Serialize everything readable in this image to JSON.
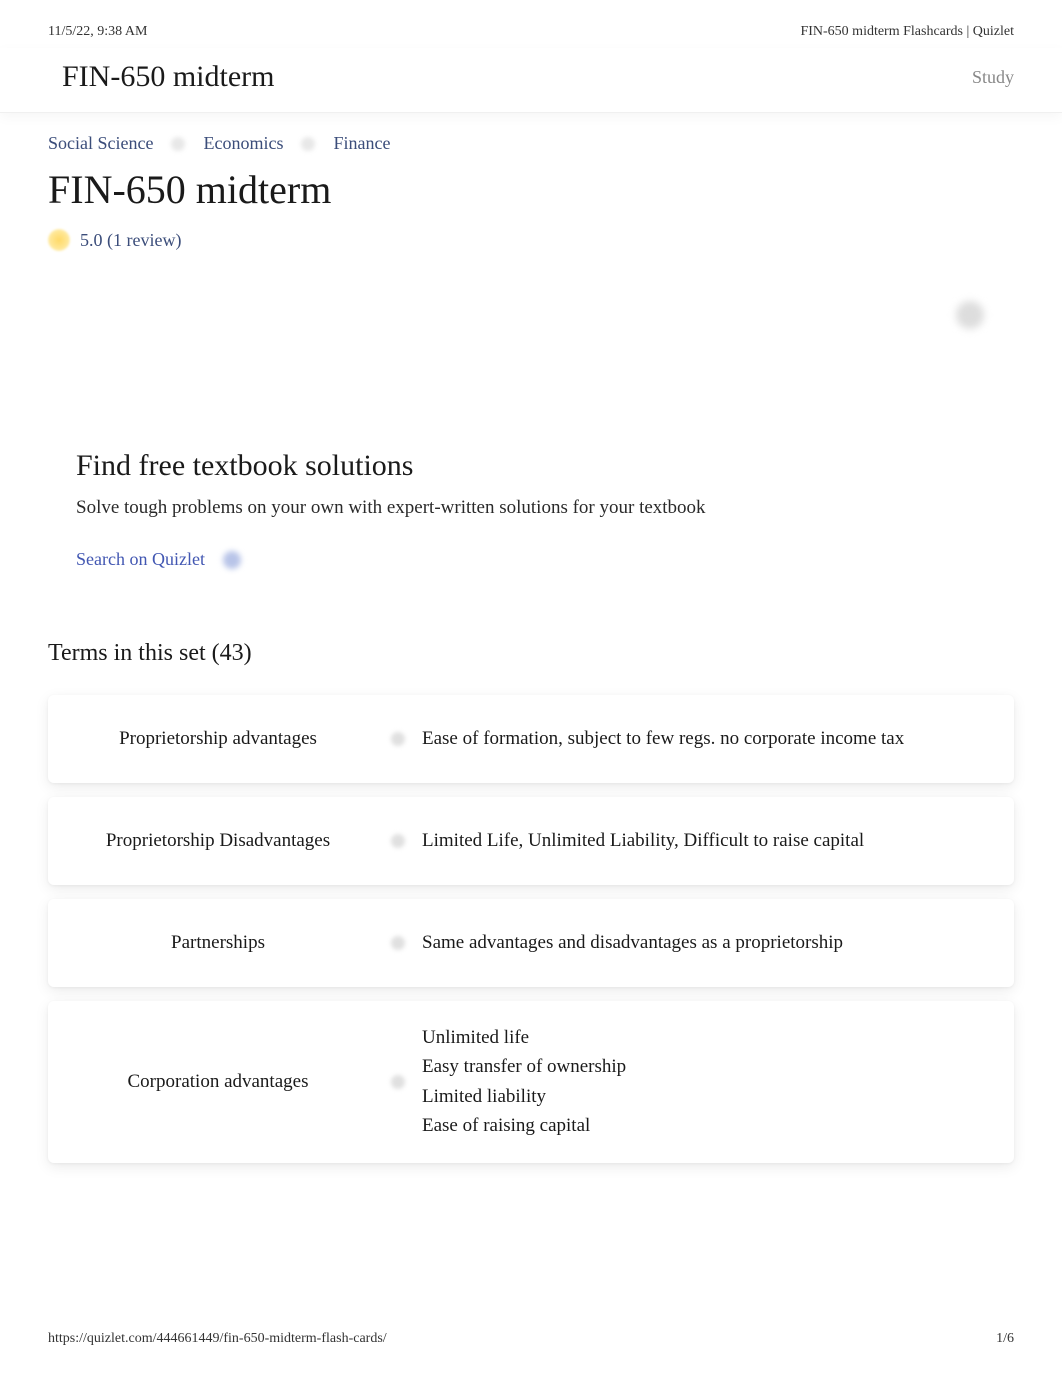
{
  "header": {
    "timestamp": "11/5/22, 9:38 AM",
    "doc_title": "FIN-650 midterm Flashcards | Quizlet"
  },
  "sticky": {
    "title": "FIN-650 midterm",
    "study_label": "Study"
  },
  "breadcrumbs": {
    "items": [
      "Social Science",
      "Economics",
      "Finance"
    ]
  },
  "page": {
    "title": "FIN-650 midterm",
    "rating": "5.0 (1 review)"
  },
  "textbook": {
    "title": "Find free textbook solutions",
    "subtitle": "Solve tough problems on your own with expert-written solutions for your textbook",
    "search_link": "Search on Quizlet"
  },
  "terms": {
    "heading": "Terms in this set (43)",
    "cards": [
      {
        "term": "Proprietorship advantages",
        "definition": "Ease of formation, subject to few regs. no corporate income tax"
      },
      {
        "term": "Proprietorship Disadvantages",
        "definition": "Limited Life, Unlimited Liability, Difficult to raise capital"
      },
      {
        "term": "Partnerships",
        "definition": "Same advantages and disadvantages as a proprietorship"
      },
      {
        "term": "Corporation advantages",
        "definition": "Unlimited life\nEasy transfer of ownership\nLimited liability\nEase of raising capital"
      }
    ]
  },
  "footer": {
    "url": "https://quizlet.com/444661449/fin-650-midterm-flash-cards/",
    "page_num": "1/6"
  },
  "colors": {
    "link": "#4257b2",
    "breadcrumb": "#3b4d7a",
    "muted": "#888888",
    "text": "#1a1a1a",
    "star": "#ffd966"
  }
}
